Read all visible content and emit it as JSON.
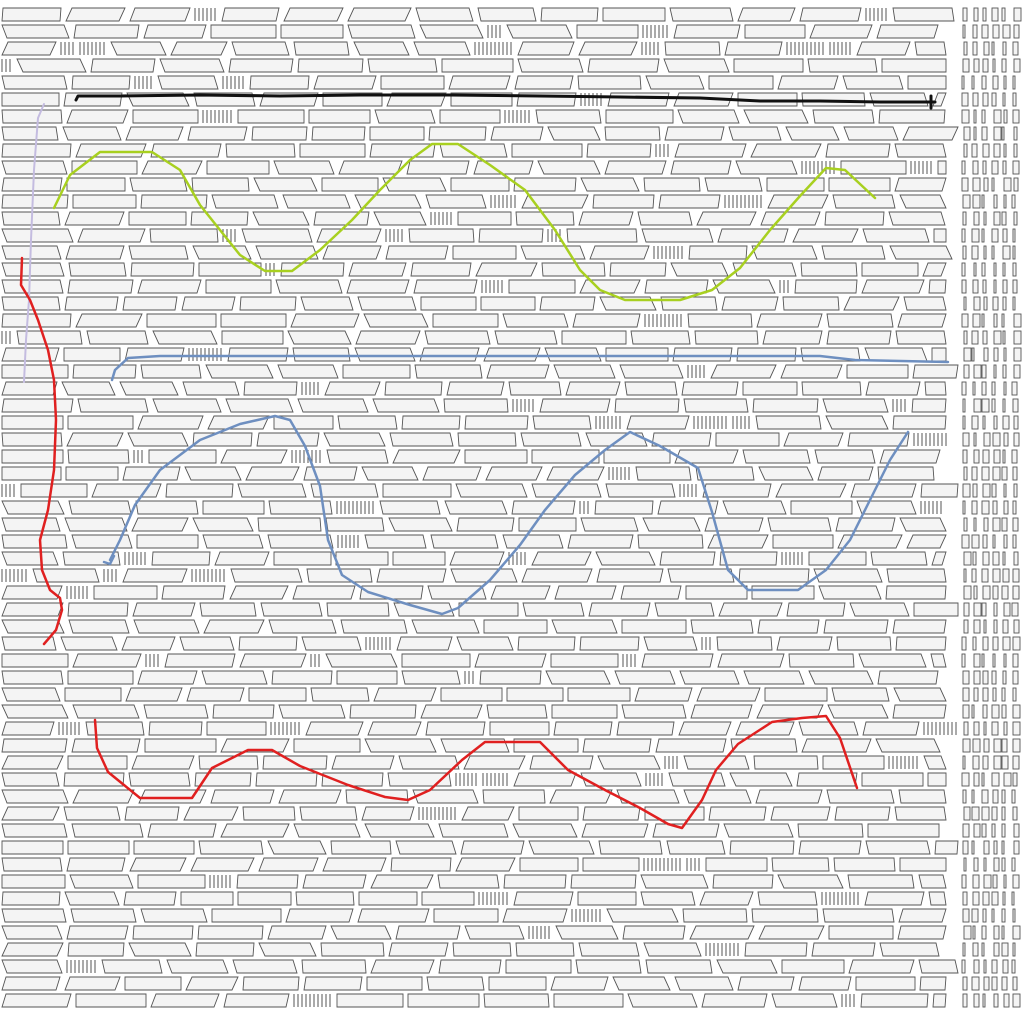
{
  "colors": {
    "background": "#ffffff",
    "cell_fill": "#f4f4f4",
    "cell_outline": "#555555",
    "stroke_black": "#111111",
    "stroke_lime": "#a8d020",
    "stroke_lavender": "#c4bce0",
    "stroke_blue": "#6e8fc0",
    "stroke_red": "#e02020"
  },
  "icons": [
    "arrowhead-icon"
  ]
}
